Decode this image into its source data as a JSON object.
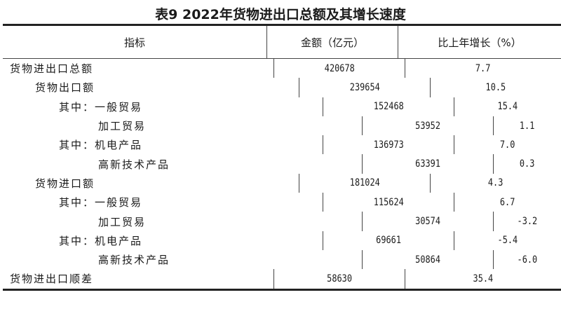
{
  "title": "表9   2022年货物进出口总额及其增长速度",
  "headers": [
    "指标",
    "金额（亿元）",
    "比上年增长（%）"
  ],
  "rows": [
    {
      "label": "货物进出口总额",
      "level": 0,
      "amount": "420678",
      "growth": "7.7"
    },
    {
      "label": "货物出口额",
      "level": 1,
      "amount": "239654",
      "growth": "10.5"
    },
    {
      "label": "其中：一般贸易",
      "level": 2,
      "amount": "152468",
      "growth": "15.4"
    },
    {
      "label": "加工贸易",
      "level": 3,
      "amount": "53952",
      "growth": "1.1"
    },
    {
      "label": "其中：机电产品",
      "level": 2,
      "amount": "136973",
      "growth": "7.0"
    },
    {
      "label": "高新技术产品",
      "level": 3,
      "amount": "63391",
      "growth": "0.3"
    },
    {
      "label": "货物进口额",
      "level": 1,
      "amount": "181024",
      "growth": "4.3"
    },
    {
      "label": "其中：一般贸易",
      "level": 2,
      "amount": "115624",
      "growth": "6.7"
    },
    {
      "label": "加工贸易",
      "level": 3,
      "amount": "30574",
      "growth": "-3.2"
    },
    {
      "label": "其中：机电产品",
      "level": 2,
      "amount": "69661",
      "growth": "-5.4"
    },
    {
      "label": "高新技术产品",
      "level": 3,
      "amount": "50864",
      "growth": "-6.0"
    },
    {
      "label": "货物进出口顺差",
      "level": 0,
      "amount": "58630",
      "growth": "35.4"
    }
  ]
}
